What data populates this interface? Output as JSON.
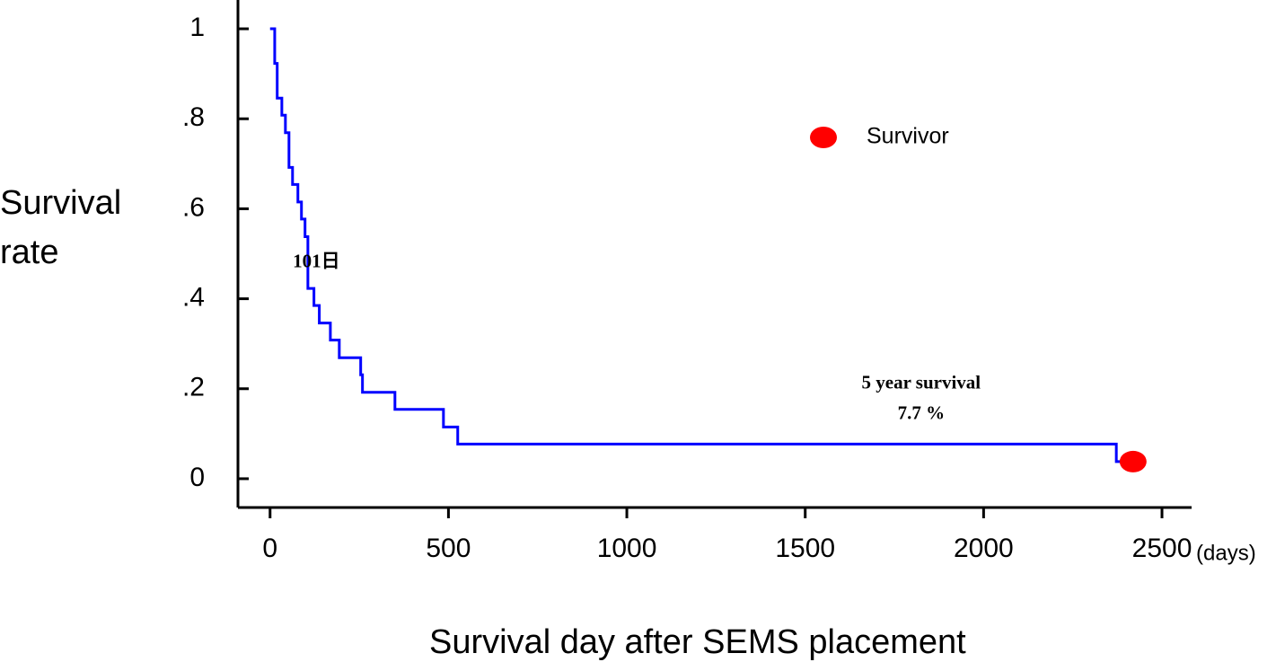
{
  "chart_data": {
    "type": "line",
    "xlabel": "Survival day after SEMS placement",
    "ylabel": [
      "Survival",
      "rate"
    ],
    "xunit": "(days)",
    "annotations": [
      {
        "text": "101日",
        "x": 130,
        "y": 0.48
      },
      {
        "text": "5 year survival",
        "x": 1825,
        "y": 0.21
      },
      {
        "text": "7.7 %",
        "x": 1825,
        "y": 0.142
      }
    ],
    "xlim": [
      -90,
      2583
    ],
    "ylim": [
      -0.064,
      1.064
    ],
    "xticks": [
      0,
      500,
      1000,
      1500,
      2000,
      2500
    ],
    "yticks": [
      0,
      {
        "value": 0.2,
        "label": ".2"
      },
      {
        "value": 0.4,
        "label": ".4"
      },
      {
        "value": 0.6,
        "label": ".6"
      },
      {
        "value": 0.8,
        "label": ".8"
      },
      1
    ],
    "color": "#0000ff",
    "x": [
      0,
      13,
      13,
      20,
      20,
      33,
      33,
      43,
      43,
      53,
      53,
      63,
      63,
      78,
      78,
      88,
      88,
      98,
      98,
      106,
      106,
      123,
      123,
      138,
      138,
      169,
      169,
      194,
      194,
      254,
      254,
      259,
      259,
      350,
      350,
      486,
      486,
      526,
      526,
      2372,
      2372,
      2419
    ],
    "values": [
      1,
      1,
      0.923,
      0.923,
      0.846,
      0.846,
      0.808,
      0.808,
      0.769,
      0.769,
      0.692,
      0.692,
      0.654,
      0.654,
      0.615,
      0.615,
      0.577,
      0.577,
      0.538,
      0.538,
      0.423,
      0.423,
      0.385,
      0.385,
      0.346,
      0.346,
      0.308,
      0.308,
      0.269,
      0.269,
      0.231,
      0.231,
      0.192,
      0.192,
      0.154,
      0.154,
      0.115,
      0.115,
      0.077,
      0.077,
      0.038,
      0.038
    ],
    "points": {
      "name": "Survivor",
      "color": "#ff0000",
      "x": [
        2419
      ],
      "values": [
        0.038
      ]
    }
  }
}
